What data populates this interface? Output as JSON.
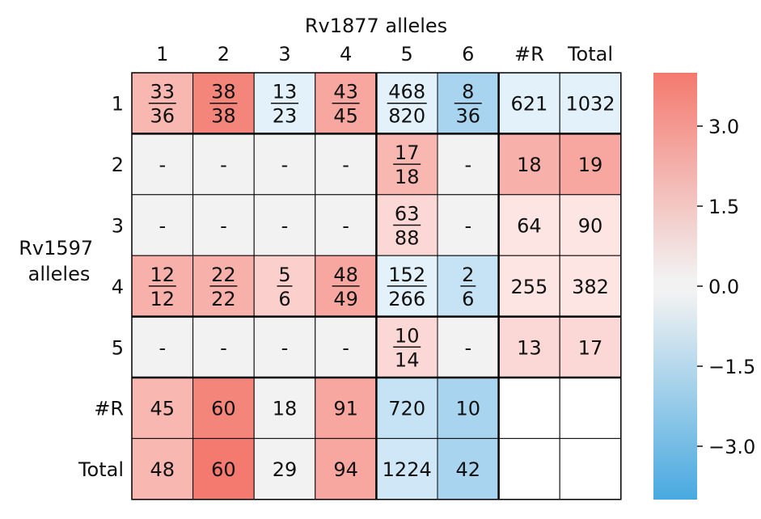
{
  "chart_data": {
    "type": "heatmap",
    "col_axis_title": "Rv1877 alleles",
    "row_axis_title_lines": [
      "Rv1597",
      "alleles"
    ],
    "columns": [
      "1",
      "2",
      "3",
      "4",
      "5",
      "6",
      "#R",
      "Total"
    ],
    "rows": [
      "1",
      "2",
      "3",
      "4",
      "5",
      "#R",
      "Total"
    ],
    "cells": [
      [
        {
          "num": "33",
          "den": "36",
          "color": "#f8b7b1"
        },
        {
          "num": "38",
          "den": "38",
          "color": "#f4857b"
        },
        {
          "num": "13",
          "den": "23",
          "color": "#e3f1fa"
        },
        {
          "num": "43",
          "den": "45",
          "color": "#f7a7a0"
        },
        {
          "num": "468",
          "den": "820",
          "color": "#e3f1fa"
        },
        {
          "num": "8",
          "den": "36",
          "color": "#a8d4ef"
        },
        {
          "text": "621",
          "color": "#e3f1fa"
        },
        {
          "text": "1032",
          "color": "#e3f1fa"
        }
      ],
      [
        {
          "text": "-",
          "color": "#f2f2f2"
        },
        {
          "text": "-",
          "color": "#f2f2f2"
        },
        {
          "text": "-",
          "color": "#f2f2f2"
        },
        {
          "text": "-",
          "color": "#f2f2f2"
        },
        {
          "num": "17",
          "den": "18",
          "color": "#f8b7b1"
        },
        {
          "text": "-",
          "color": "#f2f2f2"
        },
        {
          "text": "18",
          "color": "#f8b0aa"
        },
        {
          "text": "19",
          "color": "#f7a7a0"
        }
      ],
      [
        {
          "text": "-",
          "color": "#f2f2f2"
        },
        {
          "text": "-",
          "color": "#f2f2f2"
        },
        {
          "text": "-",
          "color": "#f2f2f2"
        },
        {
          "text": "-",
          "color": "#f2f2f2"
        },
        {
          "num": "63",
          "den": "88",
          "color": "#fbd8d5"
        },
        {
          "text": "-",
          "color": "#f2f2f2"
        },
        {
          "text": "64",
          "color": "#fde5e3"
        },
        {
          "text": "90",
          "color": "#fde5e3"
        }
      ],
      [
        {
          "num": "12",
          "den": "12",
          "color": "#f8b0aa"
        },
        {
          "num": "22",
          "den": "22",
          "color": "#f8b0aa"
        },
        {
          "num": "5",
          "den": "6",
          "color": "#fbd0cc"
        },
        {
          "num": "48",
          "den": "49",
          "color": "#f7a7a0"
        },
        {
          "num": "152",
          "den": "266",
          "color": "#e3f1fa"
        },
        {
          "num": "2",
          "den": "6",
          "color": "#c6e3f5"
        },
        {
          "text": "255",
          "color": "#fde5e3"
        },
        {
          "text": "382",
          "color": "#fde5e3"
        }
      ],
      [
        {
          "text": "-",
          "color": "#f2f2f2"
        },
        {
          "text": "-",
          "color": "#f2f2f2"
        },
        {
          "text": "-",
          "color": "#f2f2f2"
        },
        {
          "text": "-",
          "color": "#f2f2f2"
        },
        {
          "num": "10",
          "den": "14",
          "color": "#fbd8d5"
        },
        {
          "text": "-",
          "color": "#f2f2f2"
        },
        {
          "text": "13",
          "color": "#fbd8d5"
        },
        {
          "text": "17",
          "color": "#fbd8d5"
        }
      ],
      [
        {
          "text": "45",
          "color": "#f8b7b1"
        },
        {
          "text": "60",
          "color": "#f4857b"
        },
        {
          "text": "18",
          "color": "#f2f2f2"
        },
        {
          "text": "91",
          "color": "#f7a7a0"
        },
        {
          "text": "720",
          "color": "#c6e3f5"
        },
        {
          "text": "10",
          "color": "#a8d4ef"
        },
        {
          "text": "",
          "color": "#ffffff"
        },
        {
          "text": "",
          "color": "#ffffff"
        }
      ],
      [
        {
          "text": "48",
          "color": "#f8b7b1"
        },
        {
          "text": "60",
          "color": "#f4796e"
        },
        {
          "text": "29",
          "color": "#f2f2f2"
        },
        {
          "text": "94",
          "color": "#f7a7a0"
        },
        {
          "text": "1224",
          "color": "#cfe7f6"
        },
        {
          "text": "42",
          "color": "#a8d4ef"
        },
        {
          "text": "",
          "color": "#ffffff"
        },
        {
          "text": "",
          "color": "#ffffff"
        }
      ]
    ],
    "colorbar": {
      "range": [
        -4,
        4
      ],
      "ticks": [
        3.0,
        1.5,
        0.0,
        -1.5,
        -3.0
      ],
      "tick_labels": [
        "3.0",
        "1.5",
        "0.0",
        "−1.5",
        "−3.0"
      ],
      "top_color": "#f4796e",
      "mid_color": "#f2f2f2",
      "bottom_color": "#48a9e0"
    }
  }
}
